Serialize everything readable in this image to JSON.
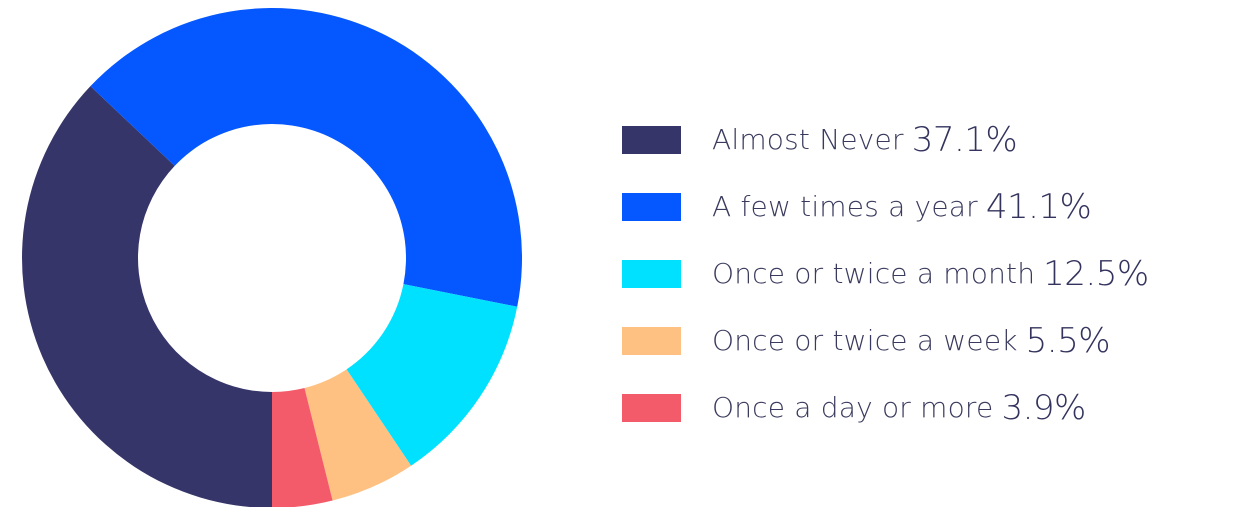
{
  "chart_data": {
    "type": "pie",
    "variant": "donut",
    "title": "",
    "legend_position": "right",
    "categories": [
      "Almost Never",
      "A few times a year",
      "Once or twice a month",
      "Once or twice a week",
      "Once a day or more"
    ],
    "values": [
      37.1,
      41.1,
      12.5,
      5.5,
      3.9
    ],
    "value_labels": [
      "37.1%",
      "41.1%",
      "12.5%",
      "5.5%",
      "3.9%"
    ],
    "colors": [
      "#35356a",
      "#0558ff",
      "#00e1ff",
      "#ffc182",
      "#f35b6a"
    ],
    "start_angle_deg": 180,
    "direction": "clockwise"
  }
}
